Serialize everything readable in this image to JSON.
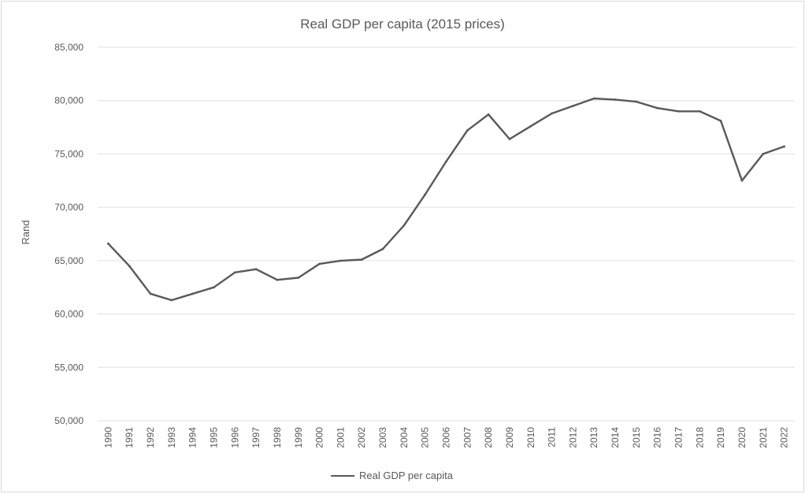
{
  "chart_data": {
    "type": "line",
    "title": "Real GDP per capita (2015 prices)",
    "xlabel": "",
    "ylabel": "Rand",
    "ylim": [
      50000,
      85000
    ],
    "yticks": [
      50000,
      55000,
      60000,
      65000,
      70000,
      75000,
      80000,
      85000
    ],
    "ytick_labels": [
      "50,000",
      "55,000",
      "60,000",
      "65,000",
      "70,000",
      "75,000",
      "80,000",
      "85,000"
    ],
    "x": [
      "1990",
      "1991",
      "1992",
      "1993",
      "1994",
      "1995",
      "1996",
      "1997",
      "1998",
      "1999",
      "2000",
      "2001",
      "2002",
      "2003",
      "2004",
      "2005",
      "2006",
      "2007",
      "2008",
      "2009",
      "2010",
      "2011",
      "2012",
      "2013",
      "2014",
      "2015",
      "2016",
      "2017",
      "2018",
      "2019",
      "2020",
      "2021",
      "2022"
    ],
    "series": [
      {
        "name": "Real GDP per capita",
        "color": "#595959",
        "values": [
          66600,
          64500,
          61900,
          61300,
          61900,
          62500,
          63900,
          64200,
          63200,
          63400,
          64700,
          65000,
          65100,
          66100,
          68300,
          71200,
          74300,
          77200,
          78700,
          76400,
          77600,
          78800,
          79500,
          80200,
          80100,
          79900,
          79300,
          79000,
          79000,
          78100,
          72500,
          75000,
          75700
        ]
      }
    ],
    "grid": true,
    "legend_position": "bottom",
    "gridline_color": "#e0e0e0"
  }
}
